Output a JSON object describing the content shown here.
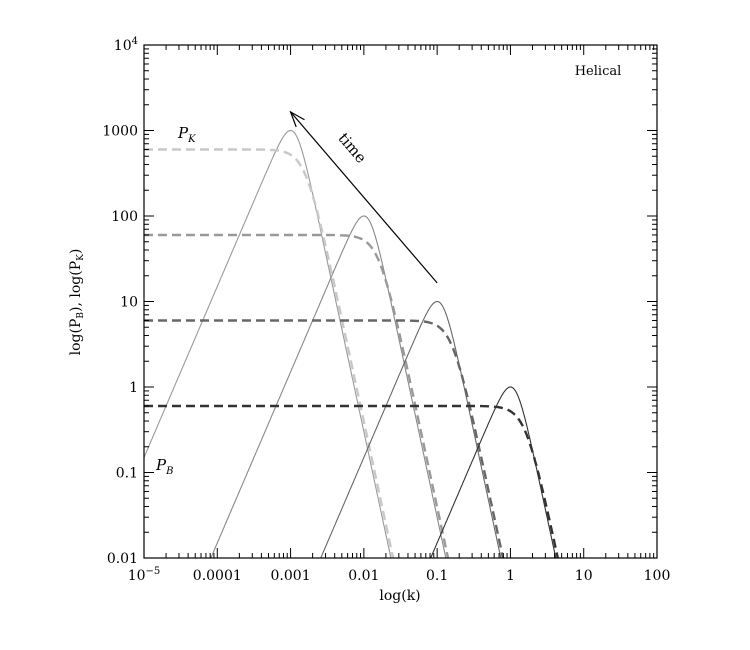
{
  "chart_data": {
    "type": "line",
    "title": "",
    "annotation_top_right": "Helical",
    "xlabel": "log(k)",
    "ylabel": "log(P_B), log(P_K)",
    "xscale": "log",
    "yscale": "log",
    "xlim": [
      1e-05,
      100
    ],
    "ylim": [
      0.01,
      10000
    ],
    "xticks": [
      {
        "v": 1e-05,
        "base": "10",
        "exp": "−5"
      },
      {
        "v": 0.0001,
        "label": "0.0001"
      },
      {
        "v": 0.001,
        "label": "0.001"
      },
      {
        "v": 0.01,
        "label": "0.01"
      },
      {
        "v": 0.1,
        "label": "0.1"
      },
      {
        "v": 1,
        "label": "1"
      },
      {
        "v": 10,
        "label": "10"
      },
      {
        "v": 100,
        "label": "100"
      }
    ],
    "yticks": [
      {
        "v": 0.01,
        "label": "0.01"
      },
      {
        "v": 0.1,
        "label": "0.1"
      },
      {
        "v": 1,
        "label": "1"
      },
      {
        "v": 10,
        "label": "10"
      },
      {
        "v": 100,
        "label": "100"
      },
      {
        "v": 1000,
        "label": "1000"
      },
      {
        "v": 10000,
        "base": "10",
        "exp": "4"
      }
    ],
    "series": [
      {
        "name": "P_B t1",
        "style": "solid",
        "color": "#999999",
        "peak_k": 0.001,
        "peak_value": 1000
      },
      {
        "name": "P_K t1",
        "style": "dashed",
        "color": "#c8c8c8",
        "plateau": 600,
        "knee_k": 0.0016
      },
      {
        "name": "P_B t2",
        "style": "solid",
        "color": "#888888",
        "peak_k": 0.01,
        "peak_value": 100
      },
      {
        "name": "P_K t2",
        "style": "dashed",
        "color": "#999999",
        "plateau": 60,
        "knee_k": 0.016
      },
      {
        "name": "P_B t3",
        "style": "solid",
        "color": "#666666",
        "peak_k": 0.1,
        "peak_value": 10
      },
      {
        "name": "P_K t3",
        "style": "dashed",
        "color": "#666666",
        "plateau": 6,
        "knee_k": 0.16
      },
      {
        "name": "P_B t4",
        "style": "solid",
        "color": "#333333",
        "peak_k": 1,
        "peak_value": 1
      },
      {
        "name": "P_K t4",
        "style": "dashed",
        "color": "#333333",
        "plateau": 0.6,
        "knee_k": 1.6
      }
    ],
    "labels": {
      "pk": "P",
      "pk_sub": "K",
      "pb": "P",
      "pb_sub": "B"
    },
    "arrow": {
      "label": "time",
      "from": [
        0.1,
        16.5
      ],
      "to": [
        0.001,
        1650
      ]
    }
  }
}
